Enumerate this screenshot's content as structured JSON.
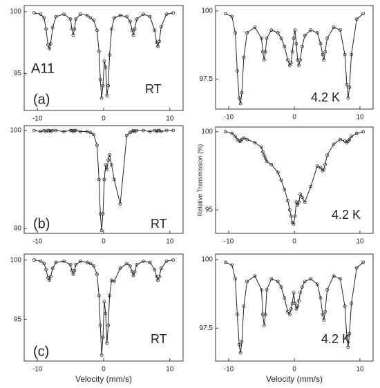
{
  "chart_data": [
    {
      "type": "scatter",
      "xlim": [
        -12,
        12
      ],
      "ylim": [
        92,
        100.5
      ],
      "xticks": [
        -10,
        0,
        10
      ],
      "yticks": [
        95,
        100
      ],
      "annotations": [
        "A11",
        "(a)",
        "RT"
      ],
      "x": [
        -10.5,
        -9.5,
        -9,
        -8.7,
        -8.4,
        -8.2,
        -8,
        -7.7,
        -7.2,
        -6,
        -5,
        -4.8,
        -4.6,
        -4.4,
        -4.2,
        -3.5,
        -2.5,
        -2,
        -1.5,
        -1,
        -0.7,
        -0.5,
        -0.3,
        -0.1,
        0.1,
        0.3,
        0.5,
        0.7,
        0.9,
        1.2,
        1.6,
        2.5,
        3.5,
        4,
        4.3,
        4.5,
        4.7,
        5,
        6,
        7,
        7.7,
        8,
        8.2,
        8.4,
        8.7,
        9.5,
        10.5
      ],
      "values": [
        99.9,
        99.8,
        99.5,
        98.6,
        97.3,
        97.0,
        97.4,
        98.7,
        99.6,
        99.8,
        99.4,
        98.6,
        98.1,
        98.6,
        99.4,
        99.8,
        99.7,
        99.5,
        99.3,
        98.5,
        96.8,
        94.5,
        93.0,
        94.0,
        96.0,
        95.5,
        93.2,
        94.0,
        96.5,
        98.6,
        99.5,
        99.7,
        99.6,
        99.2,
        98.5,
        98.1,
        98.6,
        99.4,
        99.8,
        99.6,
        98.5,
        97.5,
        97.2,
        97.6,
        98.8,
        99.8,
        99.9
      ]
    },
    {
      "type": "scatter",
      "xlim": [
        -12,
        12
      ],
      "ylim": [
        89.5,
        100.5
      ],
      "xticks": [
        -10,
        0,
        10
      ],
      "yticks": [
        90,
        100
      ],
      "annotations": [
        "(b)",
        "RT"
      ],
      "x": [
        -10.5,
        -9.5,
        -9,
        -8.7,
        -8.4,
        -8.2,
        -8,
        -7.7,
        -7.2,
        -6,
        -5,
        -4.8,
        -4.6,
        -4.4,
        -4.2,
        -3.5,
        -2.5,
        -2,
        -1.5,
        -1,
        -0.7,
        -0.5,
        -0.3,
        -0.1,
        0.1,
        0.3,
        0.5,
        0.7,
        0.9,
        1.2,
        1.6,
        2.5,
        3.5,
        4,
        4.3,
        4.5,
        4.7,
        5,
        6,
        7,
        7.7,
        8,
        8.2,
        8.4,
        8.7,
        9.5,
        10.5
      ],
      "values": [
        100,
        99.9,
        100,
        99.9,
        100,
        100,
        99.9,
        100,
        100,
        99.9,
        100,
        100,
        99.9,
        100,
        100,
        99.9,
        99.9,
        99.8,
        99.6,
        98.5,
        95,
        91.5,
        89.8,
        91.5,
        95,
        96.5,
        96,
        97,
        97.5,
        96.5,
        95,
        92.5,
        99.5,
        99.8,
        99.9,
        100,
        99.9,
        100,
        100,
        99.9,
        100,
        99.9,
        100,
        100,
        99.9,
        100,
        100
      ]
    },
    {
      "type": "scatter",
      "xlim": [
        -12,
        12
      ],
      "ylim": [
        91.5,
        100.5
      ],
      "xticks": [
        -10,
        0,
        10
      ],
      "yticks": [
        95,
        100
      ],
      "annotations": [
        "(c)",
        "RT"
      ],
      "xlabel": "Velocity (mm/s)",
      "x": [
        -10.5,
        -9.5,
        -9,
        -8.7,
        -8.4,
        -8.2,
        -8,
        -7.7,
        -7.2,
        -6,
        -5,
        -4.8,
        -4.6,
        -4.4,
        -4.2,
        -3.5,
        -2.5,
        -2,
        -1.5,
        -1,
        -0.7,
        -0.5,
        -0.3,
        -0.1,
        0.1,
        0.3,
        0.5,
        0.7,
        0.9,
        1.2,
        1.6,
        2.5,
        3.5,
        4,
        4.3,
        4.5,
        4.7,
        5,
        6,
        7,
        7.7,
        8,
        8.2,
        8.4,
        8.7,
        9.5,
        10.5
      ],
      "values": [
        100,
        99.9,
        99.7,
        99.2,
        98.5,
        98.3,
        98.6,
        99.3,
        99.8,
        99.9,
        99.6,
        99.1,
        98.8,
        99.1,
        99.6,
        99.9,
        99.8,
        99.7,
        99.5,
        98.8,
        97,
        94.5,
        92,
        93.5,
        96.5,
        95.5,
        93,
        94.5,
        97,
        98.3,
        98.2,
        99.3,
        99.7,
        99.5,
        99,
        98.7,
        99,
        99.6,
        99.9,
        99.8,
        99.2,
        98.6,
        98.3,
        98.6,
        99.3,
        99.9,
        100
      ]
    },
    {
      "type": "scatter",
      "xlim": [
        -12,
        12
      ],
      "ylim": [
        96.4,
        100.2
      ],
      "xticks": [
        -10,
        0,
        10
      ],
      "yticks": [
        97.5,
        100
      ],
      "annotations": [
        "4.2 K"
      ],
      "x": [
        -10.5,
        -9.5,
        -9,
        -8.7,
        -8.4,
        -8.2,
        -8,
        -7.7,
        -7.2,
        -6,
        -5,
        -4.8,
        -4.6,
        -4.4,
        -4.2,
        -3.5,
        -2.5,
        -2,
        -1.5,
        -1,
        -0.7,
        -0.5,
        -0.3,
        -0.1,
        0.1,
        0.3,
        0.5,
        0.7,
        0.9,
        1.2,
        1.6,
        2.5,
        3.5,
        4,
        4.3,
        4.5,
        4.7,
        5,
        6,
        7,
        7.7,
        8,
        8.2,
        8.4,
        8.7,
        9.5,
        10.5
      ],
      "values": [
        99.9,
        99.8,
        99.2,
        97.8,
        96.8,
        96.6,
        97,
        98.3,
        99.2,
        99.4,
        99,
        98.5,
        98.2,
        98.5,
        99,
        99.3,
        99.2,
        99,
        98.7,
        98.2,
        98,
        98.1,
        98.5,
        99,
        99.3,
        98.8,
        98.2,
        98,
        98.2,
        98.7,
        99.1,
        99.3,
        99.2,
        98.8,
        98.4,
        98.2,
        98.5,
        99,
        99.4,
        99.3,
        98.4,
        97.3,
        96.8,
        97.2,
        98.4,
        99.7,
        99.9
      ]
    },
    {
      "type": "scatter",
      "xlim": [
        -12,
        12
      ],
      "ylim": [
        93.5,
        100.3
      ],
      "xticks": [
        -10,
        0,
        10
      ],
      "yticks": [
        95,
        100
      ],
      "annotations": [
        "4.2 K"
      ],
      "ylabel": "Relative Transmission (%)",
      "x": [
        -10.5,
        -9.5,
        -9,
        -8.7,
        -8.4,
        -8.2,
        -8,
        -7.7,
        -7.2,
        -6,
        -5,
        -4.8,
        -4.6,
        -4.4,
        -4.2,
        -3.5,
        -2.5,
        -2,
        -1.5,
        -1,
        -0.7,
        -0.5,
        -0.3,
        -0.1,
        0.1,
        0.3,
        0.5,
        0.7,
        0.9,
        1.2,
        1.6,
        2.5,
        3.5,
        4,
        4.3,
        4.5,
        4.7,
        5,
        6,
        7,
        7.7,
        8,
        8.2,
        8.4,
        8.7,
        9.5,
        10.5
      ],
      "values": [
        100,
        99.9,
        99.7,
        99.5,
        99.4,
        99.4,
        99.5,
        99.6,
        99.5,
        99.3,
        99,
        98.7,
        98.5,
        98.3,
        98.1,
        97.9,
        97.4,
        96.9,
        96.3,
        95.6,
        95,
        94.6,
        94.2,
        94.1,
        94.6,
        95.5,
        95.3,
        95.5,
        96,
        95.8,
        95.5,
        96.5,
        97.8,
        97.7,
        97.5,
        97.6,
        97.9,
        98.5,
        99.2,
        99.5,
        99.4,
        99.3,
        99.4,
        99.5,
        99.7,
        99.9,
        100
      ]
    },
    {
      "type": "scatter",
      "xlim": [
        -12,
        12
      ],
      "ylim": [
        96.3,
        100.2
      ],
      "xticks": [
        -10,
        0,
        10
      ],
      "yticks": [
        97.5,
        100
      ],
      "annotations": [
        "4.2 K"
      ],
      "xlabel": "Velocity (mm/s)",
      "x": [
        -10.5,
        -9.5,
        -9,
        -8.7,
        -8.4,
        -8.2,
        -8,
        -7.7,
        -7.2,
        -6,
        -5,
        -4.8,
        -4.6,
        -4.4,
        -4.2,
        -3.5,
        -2.5,
        -2,
        -1.5,
        -1,
        -0.7,
        -0.5,
        -0.3,
        -0.1,
        0.1,
        0.3,
        0.5,
        0.7,
        0.9,
        1.2,
        1.6,
        2.5,
        3.5,
        4,
        4.3,
        4.5,
        4.7,
        5,
        6,
        7,
        7.7,
        8,
        8.2,
        8.4,
        8.7,
        9.5,
        10.5
      ],
      "values": [
        99.9,
        99.8,
        99.3,
        98,
        96.9,
        96.6,
        97,
        98.3,
        99.2,
        99.4,
        98.9,
        98,
        97.6,
        98,
        98.9,
        99.3,
        99.2,
        99,
        98.6,
        98.1,
        98,
        98.2,
        98.4,
        98.8,
        98.4,
        98.2,
        98.3,
        98.5,
        98.8,
        99,
        99.2,
        99.3,
        99.1,
        98.6,
        98,
        97.8,
        98.1,
        98.9,
        99.4,
        99.3,
        98.3,
        97.2,
        96.8,
        97.3,
        98.4,
        99.7,
        99.9
      ]
    }
  ]
}
